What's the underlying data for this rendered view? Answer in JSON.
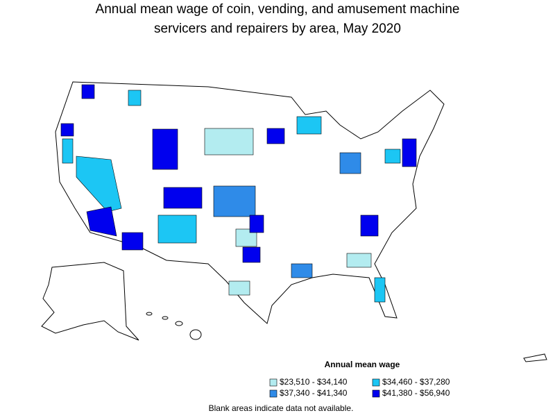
{
  "title": [
    "Annual mean wage of coin, vending, and amusement machine",
    "servicers and repairers by area, May 2020"
  ],
  "legend": {
    "title": "Annual mean wage",
    "items": [
      {
        "label": "$23,510 - $34,140",
        "color": "#b3ecf0"
      },
      {
        "label": "$34,460 - $37,280",
        "color": "#1cc6f4"
      },
      {
        "label": "$37,340 - $41,340",
        "color": "#2f8be8"
      },
      {
        "label": "$41,380 - $56,940",
        "color": "#0000ee"
      }
    ]
  },
  "note": "Blank areas indicate data not available."
}
